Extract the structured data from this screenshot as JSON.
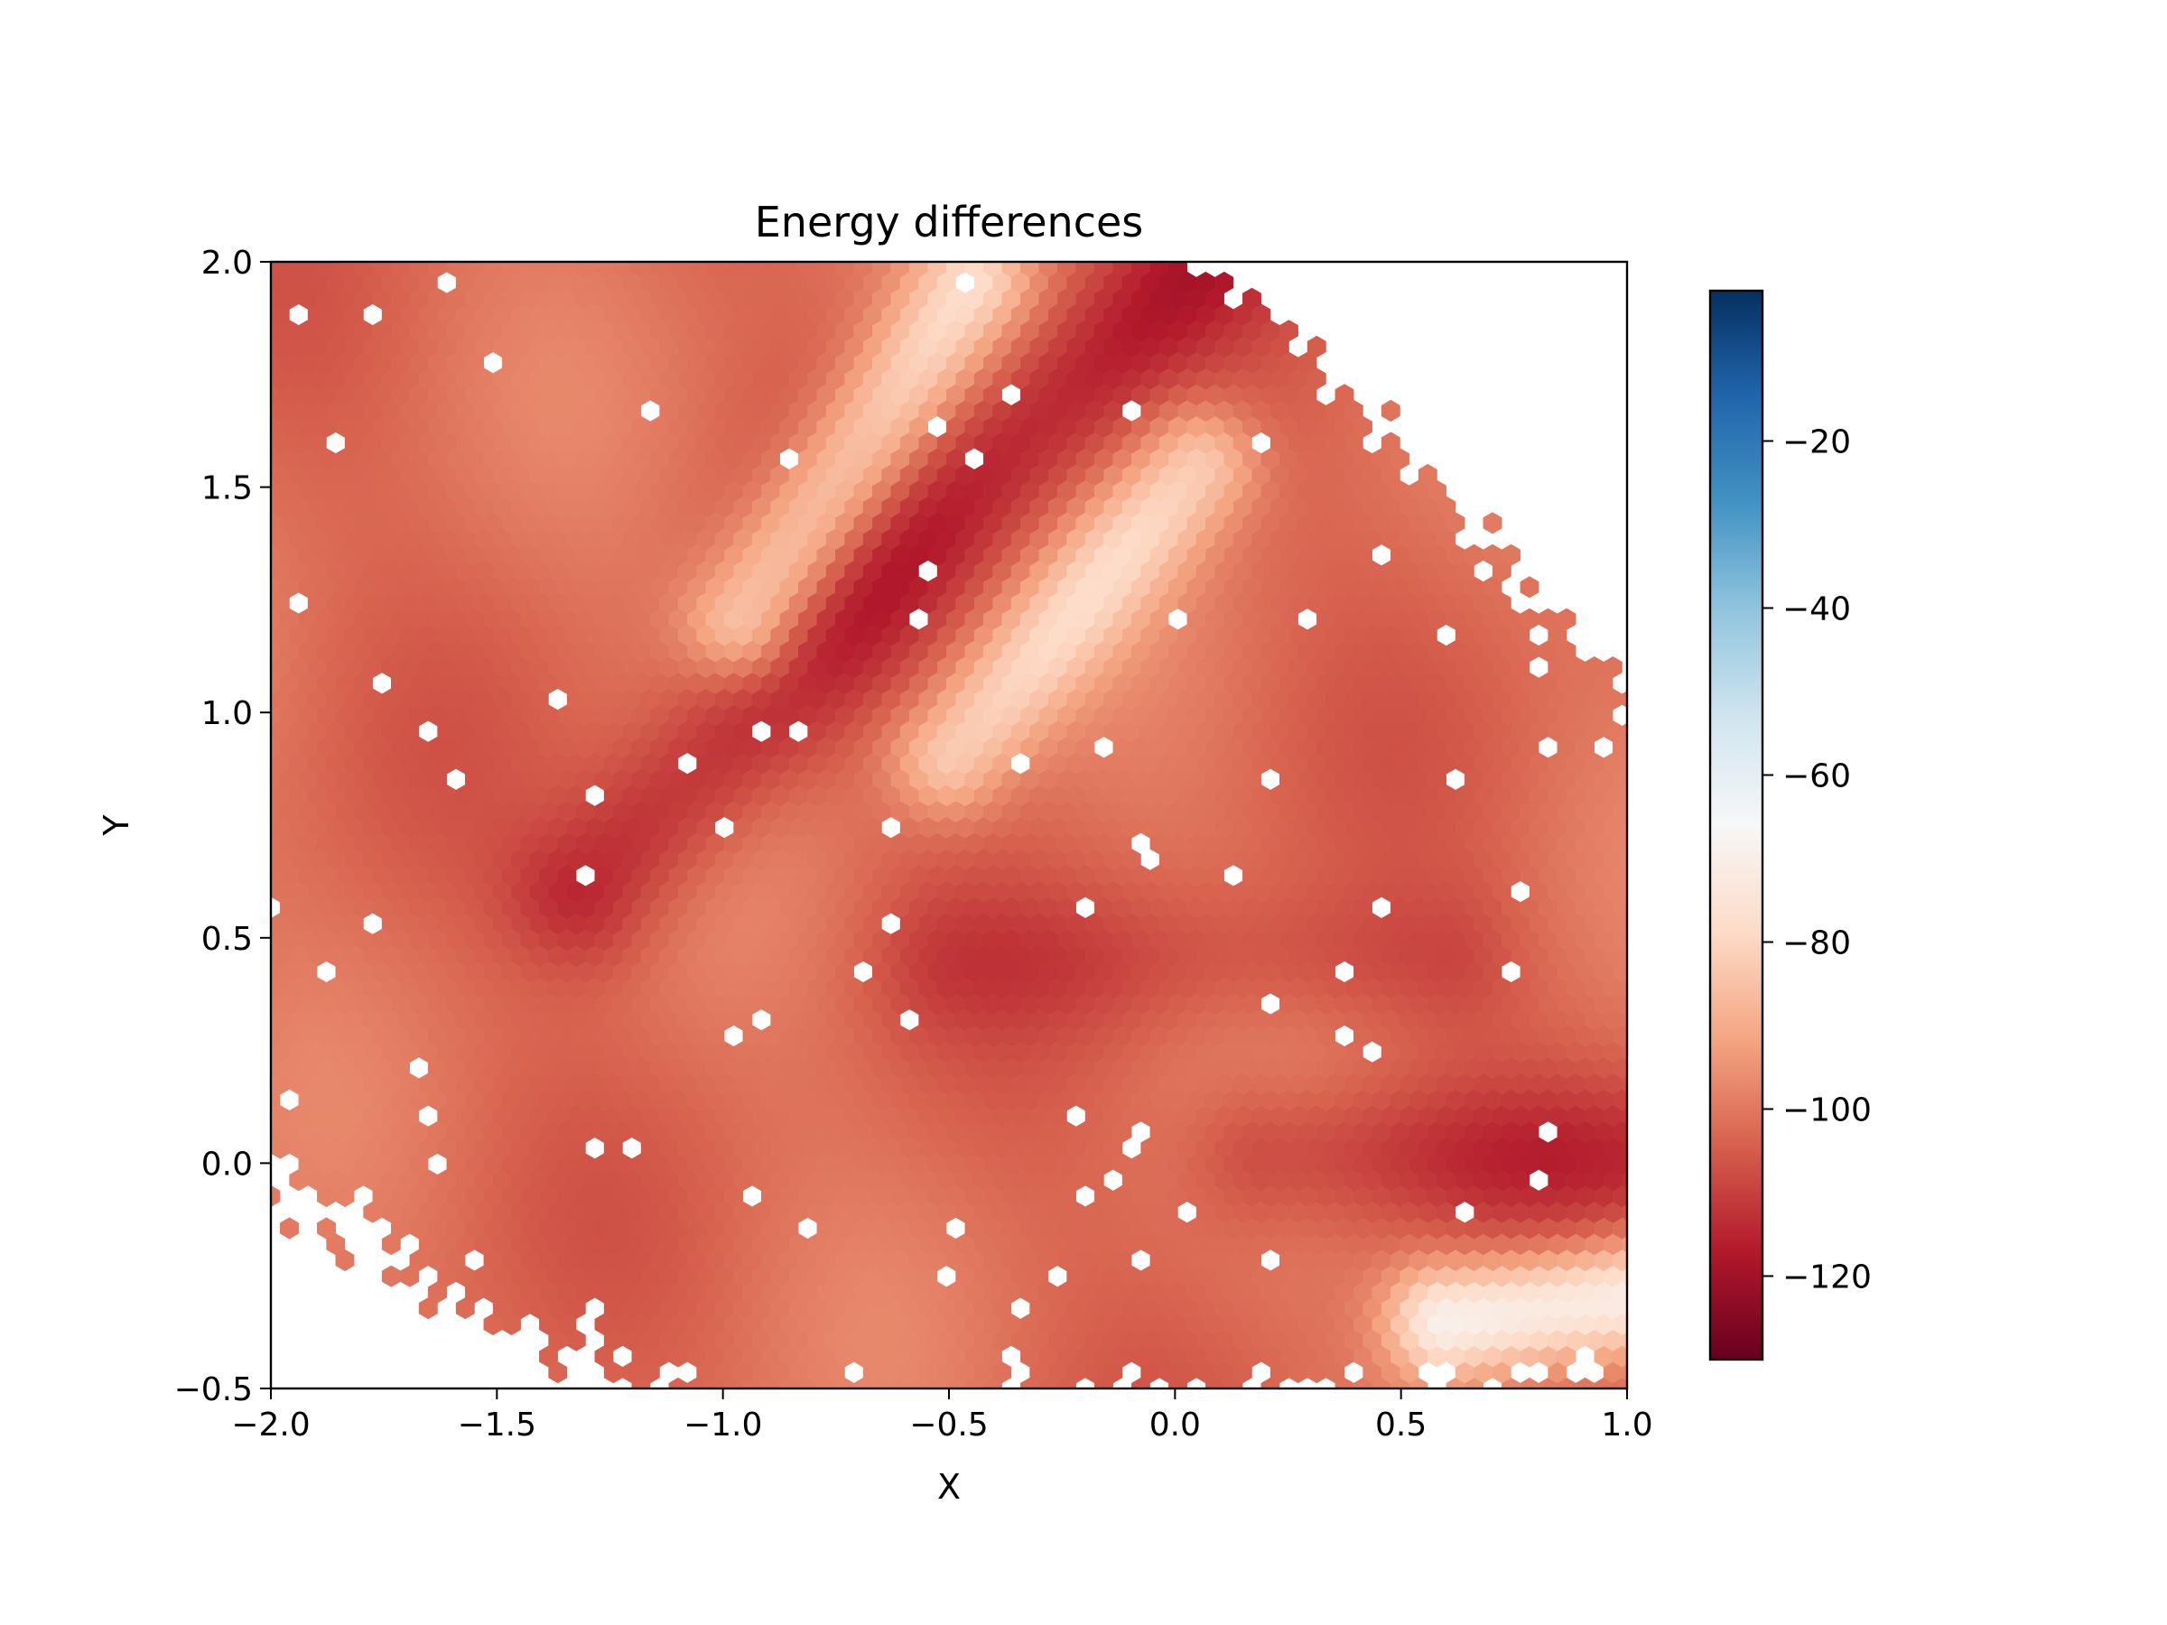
{
  "chart_data": {
    "type": "heatmap",
    "subtype": "hexbin",
    "title": "Energy differences",
    "xlabel": "X",
    "ylabel": "Y",
    "xlim": [
      -2.0,
      1.0
    ],
    "ylim": [
      -0.5,
      2.0
    ],
    "xticks": [
      -2.0,
      -1.5,
      -1.0,
      -0.5,
      0.0,
      0.5,
      1.0
    ],
    "xtick_labels": [
      "−2.0",
      "−1.5",
      "−1.0",
      "−0.5",
      "0.0",
      "0.5",
      "1.0"
    ],
    "yticks": [
      -0.5,
      0.0,
      0.5,
      1.0,
      1.5,
      2.0
    ],
    "ytick_labels": [
      "−0.5",
      "0.0",
      "0.5",
      "1.0",
      "1.5",
      "2.0"
    ],
    "colormap": "RdBu",
    "colorbar": {
      "range": [
        -130,
        -2
      ],
      "ticks": [
        -120,
        -100,
        -80,
        -60,
        -40,
        -20
      ],
      "tick_labels": [
        "−120",
        "−100",
        "−80",
        "−60",
        "−40",
        "−20"
      ],
      "low_color": "#67001f",
      "high_color": "#053061"
    },
    "grid": false,
    "value_range_observed": [
      -125,
      -65
    ],
    "features": [
      {
        "description": "low ridge",
        "from": [
          -1.3,
          0.6
        ],
        "to": [
          0.05,
          2.0
        ],
        "value": -115
      },
      {
        "description": "high ridge",
        "from": [
          -0.95,
          1.2
        ],
        "to": [
          -0.45,
          1.95
        ],
        "value": -80
      },
      {
        "description": "high ridge",
        "from": [
          -0.5,
          0.9
        ],
        "to": [
          0.05,
          1.55
        ],
        "value": -82
      },
      {
        "description": "low band",
        "from": [
          -0.5,
          0.45
        ],
        "to": [
          0.6,
          0.45
        ],
        "value": -108
      },
      {
        "description": "low band",
        "from": [
          0.2,
          0.02
        ],
        "to": [
          1.0,
          0.02
        ],
        "value": -112
      },
      {
        "description": "high corner",
        "from": [
          0.6,
          -0.35
        ],
        "to": [
          1.0,
          -0.3
        ],
        "value": -68
      }
    ]
  }
}
